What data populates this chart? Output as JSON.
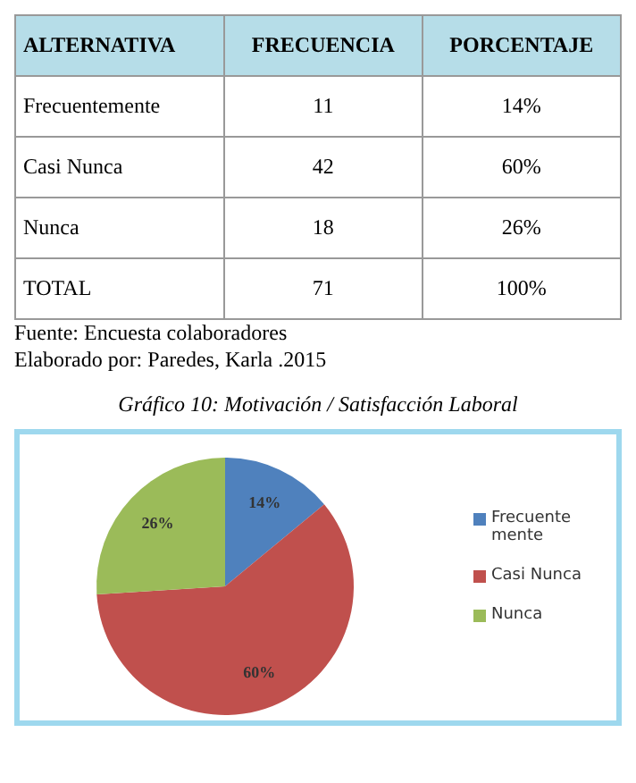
{
  "chart_data": [
    {
      "type": "other",
      "annotations": [
        "ALTERNATIVA",
        "FRECUENCIA",
        "PORCENTAJE",
        "Frecuentemente",
        "11",
        "14%",
        "Casi Nunca",
        "42",
        "60%",
        "Nunca",
        "18",
        "26%",
        "TOTAL",
        "71",
        "100%"
      ]
    },
    {
      "type": "pie",
      "title": "Gráfico 10: Motivación / Satisfacción Laboral",
      "categories": [
        "Frecuentemente",
        "Casi Nunca",
        "Nunca"
      ],
      "values": [
        14,
        60,
        26
      ],
      "colors": [
        "#4f81bd",
        "#c0504d",
        "#9bbb59"
      ],
      "value_labels": [
        "14%",
        "60%",
        "26%"
      ],
      "legend": "right",
      "annotations": [
        "Fuente: Encuesta colaboradores",
        "Elaborado por: Paredes, Karla .2015"
      ]
    }
  ]
}
